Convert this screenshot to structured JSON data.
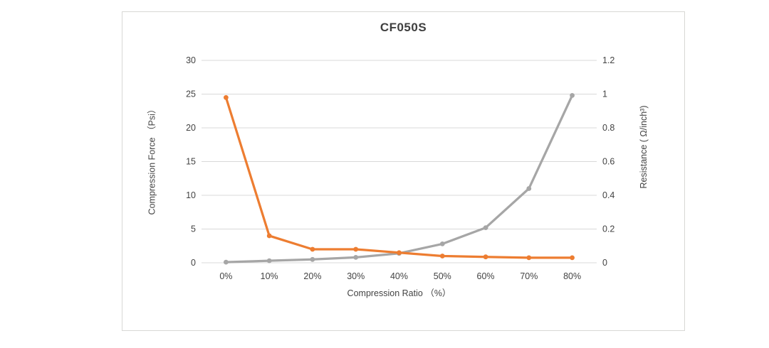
{
  "chart_data": {
    "type": "line",
    "title": "CF050S",
    "categories": [
      "0%",
      "10%",
      "20%",
      "30%",
      "40%",
      "50%",
      "60%",
      "70%",
      "80%"
    ],
    "series": [
      {
        "name": "Compression Force",
        "axis": "left",
        "color": "#a6a6a6",
        "marker": "circle",
        "values": [
          0.1,
          0.3,
          0.5,
          0.8,
          1.4,
          2.8,
          5.2,
          11,
          24.8
        ]
      },
      {
        "name": "Resistance",
        "axis": "right",
        "color": "#ed7d31",
        "marker": "circle",
        "values": [
          0.98,
          0.16,
          0.08,
          0.08,
          0.06,
          0.04,
          0.035,
          0.03,
          0.03
        ]
      }
    ],
    "x_axis": {
      "label": "Compression Ratio （%）"
    },
    "y_axis_left": {
      "label": "Compression Force （Psi）",
      "min": 0,
      "max": 30,
      "ticks": [
        "0",
        "5",
        "10",
        "15",
        "20",
        "25",
        "30"
      ]
    },
    "y_axis_right": {
      "label": "Resistance ( Ω/inch³)",
      "min": 0,
      "max": 1.2,
      "ticks": [
        "0",
        "0.2",
        "0.4",
        "0.6",
        "0.8",
        "1",
        "1.2"
      ]
    },
    "grid": {
      "horizontal": true,
      "color": "#d9d9d9"
    },
    "legend": "none",
    "plot_background": "#ffffff"
  }
}
